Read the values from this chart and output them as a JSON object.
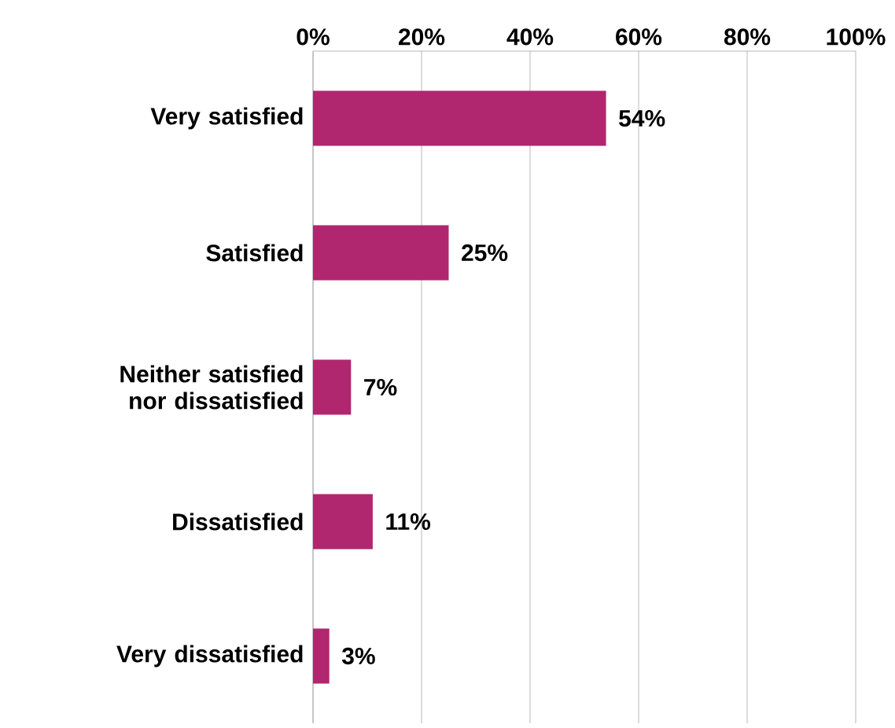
{
  "chart_data": {
    "type": "bar",
    "orientation": "horizontal",
    "categories": [
      "Very satisfied",
      "Satisfied",
      "Neither satisfied nor dissatisfied",
      "Dissatisfied",
      "Very dissatisfied"
    ],
    "values": [
      54,
      25,
      7,
      11,
      3
    ],
    "value_labels": [
      "54%",
      "25%",
      "7%",
      "11%",
      "3%"
    ],
    "color": "#b0266f",
    "xlim": [
      0,
      100
    ],
    "xticks": [
      {
        "value": 0,
        "label": "0%"
      },
      {
        "value": 20,
        "label": "20%"
      },
      {
        "value": 40,
        "label": "40%"
      },
      {
        "value": 60,
        "label": "60%"
      },
      {
        "value": 80,
        "label": "80%"
      },
      {
        "value": 100,
        "label": "100%"
      }
    ],
    "grid": "x"
  }
}
